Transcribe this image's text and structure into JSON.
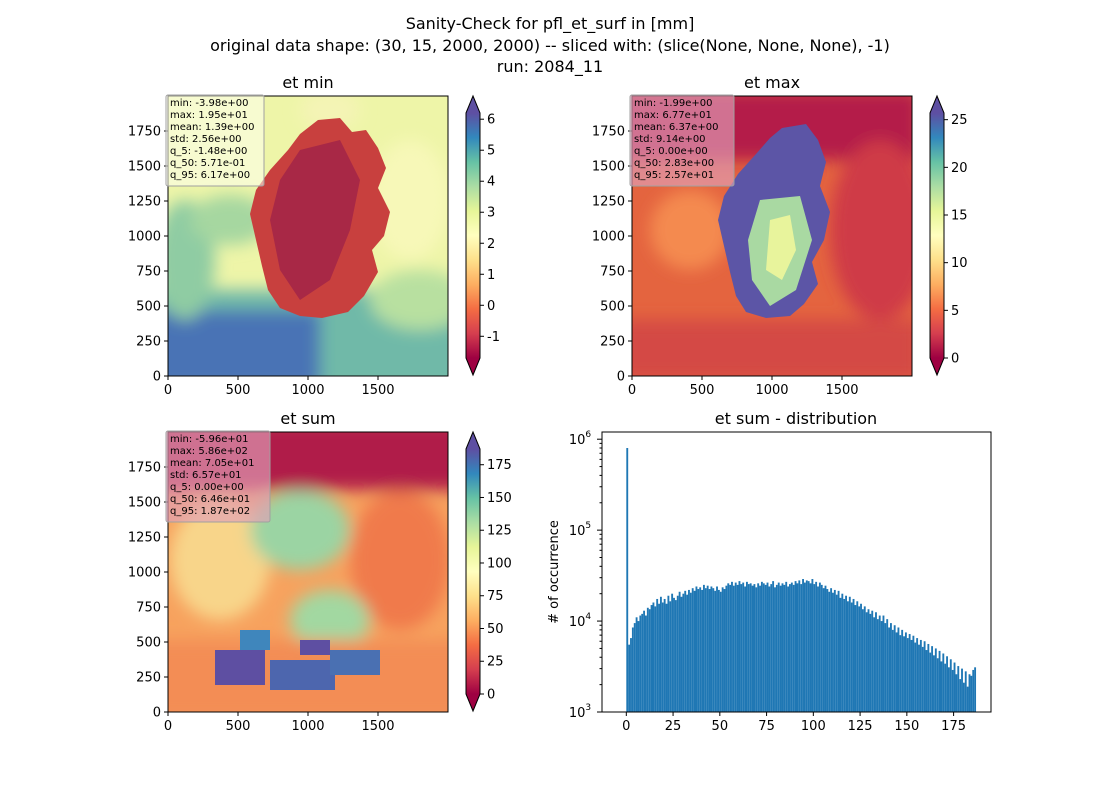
{
  "figure": {
    "title_lines": [
      "Sanity-Check for pfl_et_surf in [mm]",
      "original data shape: (30, 15, 2000, 2000) -- sliced with: (slice(None, None, None), -1)",
      "run: 2084_11"
    ]
  },
  "colors": {
    "hist_bar": "#1f77b4",
    "stats_box_light": "#fffff0",
    "stats_box_dark": "#e0a0b8",
    "colormap": [
      "#9e0142",
      "#d53e4f",
      "#f46d43",
      "#fdae61",
      "#fee08b",
      "#ffffbf",
      "#e6f598",
      "#abdda4",
      "#66c2a5",
      "#3288bd",
      "#5e4fa2"
    ]
  },
  "chart_data": [
    {
      "id": "et_min",
      "type": "heatmap",
      "title": "et min",
      "x_ticks": [
        "0",
        "500",
        "1000",
        "1500"
      ],
      "y_ticks": [
        "0",
        "250",
        "500",
        "750",
        "1000",
        "1250",
        "1500",
        "1750"
      ],
      "xlim": [
        0,
        2000
      ],
      "ylim": [
        0,
        2000
      ],
      "colorbar": {
        "min": -1.7,
        "max": 6.2,
        "ticks": [
          "-1",
          "0",
          "1",
          "2",
          "3",
          "4",
          "5",
          "6"
        ],
        "tick_values": [
          -1,
          0,
          1,
          2,
          3,
          4,
          5,
          6
        ],
        "extend": "both"
      },
      "stats_style": "light",
      "stats": [
        "min: -3.98e+00",
        "max: 1.95e+01",
        "mean: 1.39e+00",
        "std: 2.56e+00",
        "q_5: -1.48e+00",
        "q_50: 5.71e-01",
        "q_95: 6.17e+00"
      ]
    },
    {
      "id": "et_max",
      "type": "heatmap",
      "title": "et max",
      "x_ticks": [
        "0",
        "500",
        "1000",
        "1500"
      ],
      "y_ticks": [
        "0",
        "250",
        "500",
        "750",
        "1000",
        "1250",
        "1500",
        "1750"
      ],
      "xlim": [
        0,
        2000
      ],
      "ylim": [
        0,
        2000
      ],
      "colorbar": {
        "min": 0,
        "max": 25.7,
        "ticks": [
          "0",
          "5",
          "10",
          "15",
          "20",
          "25"
        ],
        "tick_values": [
          0,
          5,
          10,
          15,
          20,
          25
        ],
        "extend": "both"
      },
      "stats_style": "dark",
      "stats": [
        "min: -1.99e+00",
        "max: 6.77e+01",
        "mean: 6.37e+00",
        "std: 9.14e+00",
        "q_5: 0.00e+00",
        "q_50: 2.83e+00",
        "q_95: 2.57e+01"
      ]
    },
    {
      "id": "et_sum",
      "type": "heatmap",
      "title": "et sum",
      "x_ticks": [
        "0",
        "500",
        "1000",
        "1500"
      ],
      "y_ticks": [
        "0",
        "250",
        "500",
        "750",
        "1000",
        "1250",
        "1500",
        "1750"
      ],
      "xlim": [
        0,
        2000
      ],
      "ylim": [
        0,
        2000
      ],
      "colorbar": {
        "min": 0,
        "max": 187,
        "ticks": [
          "0",
          "25",
          "50",
          "75",
          "100",
          "125",
          "150",
          "175"
        ],
        "tick_values": [
          0,
          25,
          50,
          75,
          100,
          125,
          150,
          175
        ],
        "extend": "both"
      },
      "stats_style": "dark",
      "stats": [
        "min: -5.96e+01",
        "max: 5.86e+02",
        "mean: 7.05e+01",
        "std: 6.57e+01",
        "q_5: 0.00e+00",
        "q_50: 6.46e+01",
        "q_95: 1.87e+02"
      ]
    },
    {
      "id": "et_sum_distribution",
      "type": "bar",
      "title": "et sum - distribution",
      "ylabel": "# of occurrence",
      "yscale": "log",
      "xlim": [
        -13,
        195
      ],
      "ylim": [
        1000,
        1200000
      ],
      "x_ticks": [
        "0",
        "25",
        "50",
        "75",
        "100",
        "125",
        "150",
        "175"
      ],
      "x_tick_values": [
        0,
        25,
        50,
        75,
        100,
        125,
        150,
        175
      ],
      "y_ticks": [
        "10",
        "10",
        "10",
        "10"
      ],
      "y_tick_exponents": [
        "3",
        "4",
        "5",
        "6"
      ],
      "y_tick_values": [
        1000,
        10000,
        100000,
        1000000
      ],
      "bin_width": 1,
      "x": [
        0,
        1,
        2,
        3,
        4,
        5,
        6,
        7,
        8,
        9,
        10,
        11,
        12,
        13,
        14,
        15,
        16,
        17,
        18,
        19,
        20,
        21,
        22,
        23,
        24,
        25,
        26,
        27,
        28,
        29,
        30,
        31,
        32,
        33,
        34,
        35,
        36,
        37,
        38,
        39,
        40,
        41,
        42,
        43,
        44,
        45,
        46,
        47,
        48,
        49,
        50,
        51,
        52,
        53,
        54,
        55,
        56,
        57,
        58,
        59,
        60,
        61,
        62,
        63,
        64,
        65,
        66,
        67,
        68,
        69,
        70,
        71,
        72,
        73,
        74,
        75,
        76,
        77,
        78,
        79,
        80,
        81,
        82,
        83,
        84,
        85,
        86,
        87,
        88,
        89,
        90,
        91,
        92,
        93,
        94,
        95,
        96,
        97,
        98,
        99,
        100,
        101,
        102,
        103,
        104,
        105,
        106,
        107,
        108,
        109,
        110,
        111,
        112,
        113,
        114,
        115,
        116,
        117,
        118,
        119,
        120,
        121,
        122,
        123,
        124,
        125,
        126,
        127,
        128,
        129,
        130,
        131,
        132,
        133,
        134,
        135,
        136,
        137,
        138,
        139,
        140,
        141,
        142,
        143,
        144,
        145,
        146,
        147,
        148,
        149,
        150,
        151,
        152,
        153,
        154,
        155,
        156,
        157,
        158,
        159,
        160,
        161,
        162,
        163,
        164,
        165,
        166,
        167,
        168,
        169,
        170,
        171,
        172,
        173,
        174,
        175,
        176,
        177,
        178,
        179,
        180,
        181,
        182,
        183,
        184,
        185,
        186
      ],
      "values": [
        800000,
        5500,
        6500,
        8500,
        9500,
        11000,
        10000,
        11500,
        12000,
        13000,
        11500,
        14000,
        13500,
        15000,
        16000,
        14500,
        17500,
        15500,
        18500,
        16000,
        17500,
        15500,
        19000,
        16500,
        20000,
        18000,
        17000,
        19000,
        21000,
        18500,
        20000,
        21500,
        19500,
        22000,
        20500,
        23000,
        21500,
        24000,
        22500,
        23500,
        22000,
        25000,
        23000,
        24500,
        22500,
        24000,
        23000,
        21500,
        24000,
        22000,
        21000,
        23500,
        22500,
        24500,
        26000,
        25000,
        27000,
        24500,
        26500,
        25000,
        27500,
        25500,
        26500,
        24000,
        27000,
        25500,
        26000,
        24500,
        25500,
        23500,
        26000,
        24500,
        27000,
        26000,
        25000,
        26500,
        24000,
        25500,
        27500,
        23500,
        25000,
        26500,
        24500,
        26000,
        25000,
        27000,
        24000,
        25500,
        26500,
        25000,
        27500,
        26000,
        28000,
        25500,
        29000,
        26500,
        28000,
        27500,
        26000,
        29000,
        25500,
        27000,
        24000,
        26500,
        25000,
        23000,
        24500,
        22500,
        21000,
        23000,
        20500,
        22000,
        19500,
        21500,
        18000,
        20000,
        17500,
        19000,
        16500,
        18500,
        16000,
        17500,
        15000,
        16500,
        14500,
        15500,
        13500,
        14500,
        12500,
        13500,
        12000,
        13000,
        11000,
        12500,
        10500,
        11500,
        10000,
        11500,
        9500,
        10500,
        8500,
        9500,
        8000,
        9000,
        7500,
        8500,
        7000,
        8000,
        6800,
        7500,
        6500,
        7200,
        6200,
        6900,
        5800,
        6500,
        5500,
        6200,
        5200,
        6000,
        4800,
        5600,
        4500,
        5300,
        4200,
        5000,
        3900,
        4700,
        3600,
        4400,
        3400,
        4100,
        3100,
        3800,
        2900,
        3500,
        2600,
        3200,
        2300,
        3000,
        2100,
        2800,
        1900,
        2600,
        2500,
        2900,
        3100
      ]
    }
  ]
}
